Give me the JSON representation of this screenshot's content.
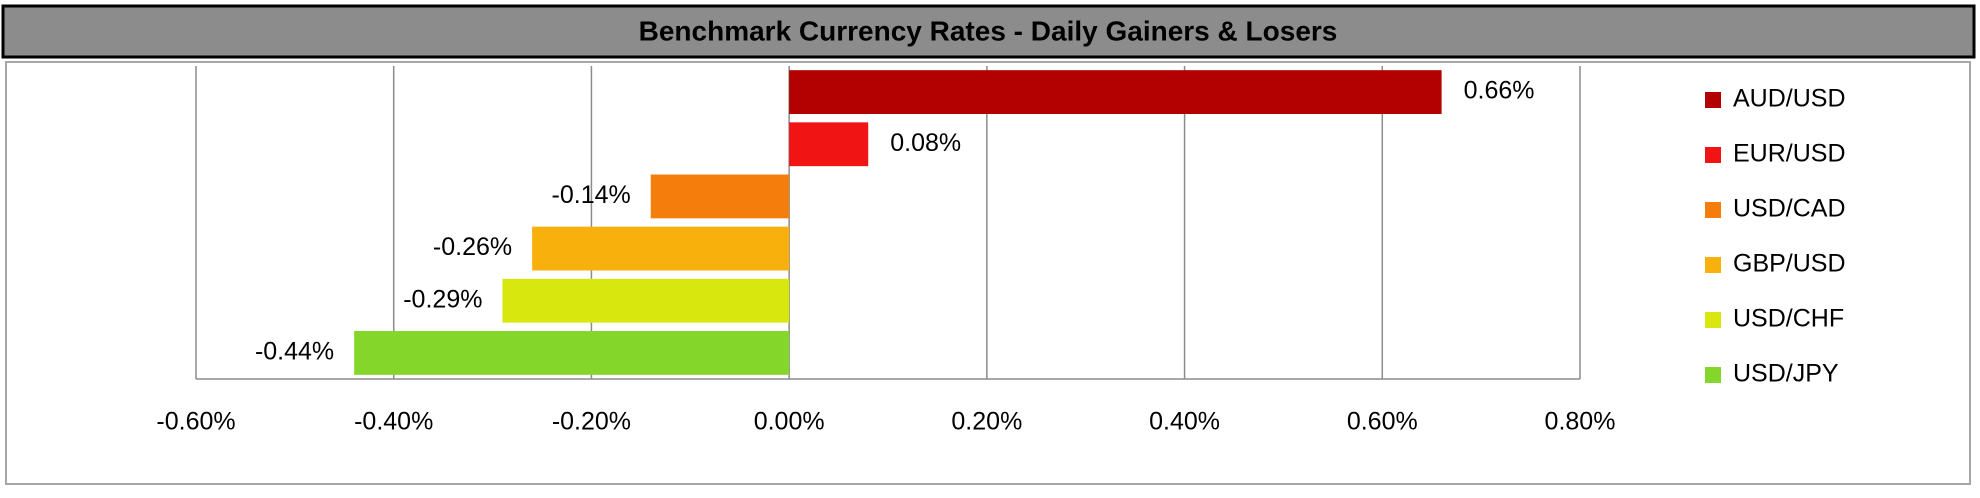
{
  "chart_data": {
    "type": "bar",
    "orientation": "horizontal",
    "title": "Benchmark Currency Rates - Daily Gainers & Losers",
    "categories": [
      "AUD/USD",
      "EUR/USD",
      "USD/CAD",
      "GBP/USD",
      "USD/CHF",
      "USD/JPY"
    ],
    "values": [
      0.66,
      0.08,
      -0.14,
      -0.26,
      -0.29,
      -0.44
    ],
    "value_labels": [
      "0.66%",
      "0.08%",
      "-0.14%",
      "-0.26%",
      "-0.29%",
      "-0.44%"
    ],
    "colors": [
      "#b30000",
      "#f01414",
      "#f57d0c",
      "#f8b00c",
      "#d8e80e",
      "#84d62a"
    ],
    "xlim": [
      -0.6,
      0.8
    ],
    "xticks": [
      {
        "value": -0.6,
        "label": "-0.60%"
      },
      {
        "value": -0.4,
        "label": "-0.40%"
      },
      {
        "value": -0.2,
        "label": "-0.20%"
      },
      {
        "value": 0,
        "label": "0.00%"
      },
      {
        "value": 0.2,
        "label": "0.20%"
      },
      {
        "value": 0.4,
        "label": "0.40%"
      },
      {
        "value": 0.6,
        "label": "0.60%"
      },
      {
        "value": 0.8,
        "label": "0.80%"
      }
    ],
    "grid": true,
    "legend": "right"
  }
}
